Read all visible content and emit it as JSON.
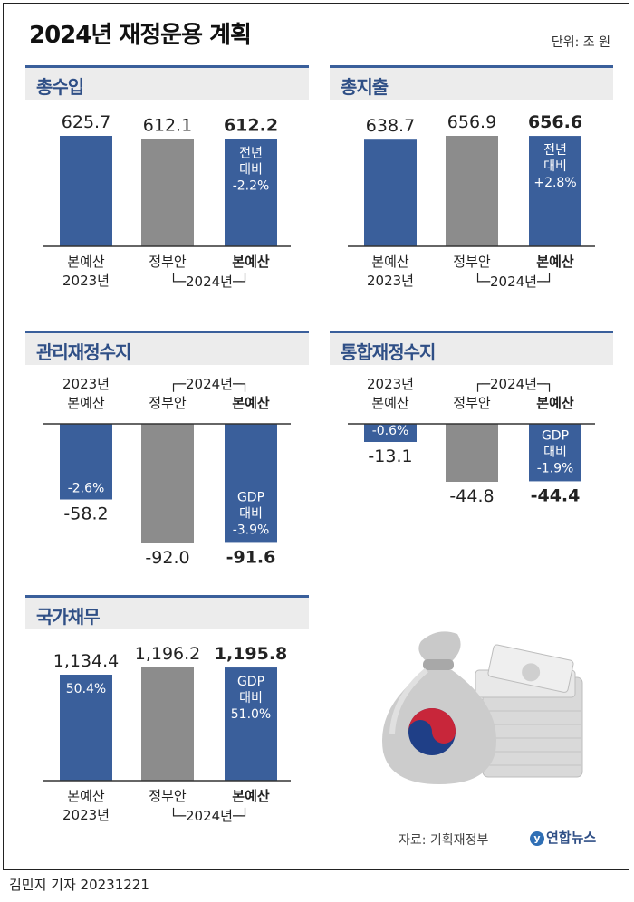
{
  "header": {
    "title": "2024년 재정운용 계획",
    "unit": "단위: 조 원"
  },
  "footer": {
    "credit": "김민지 기자  20231221",
    "source": "자료: 기획재정부",
    "logo": "연합뉴스"
  },
  "colors": {
    "blue": "#3a5f9b",
    "gray": "#8c8c8c",
    "panel_bg": "#ececec",
    "title_blue": "#2f4f86"
  },
  "icons": {
    "illustration": "money-bag-and-cash-icon"
  },
  "chart_data": [
    {
      "type": "bar",
      "title": "총수입",
      "categories": [
        "본예산 2023년",
        "정부안",
        "본예산"
      ],
      "values": [
        625.7,
        612.1,
        612.2
      ],
      "value_labels": [
        "625.7",
        "612.1",
        "612.2"
      ],
      "bar_colors": [
        "blue",
        "gray",
        "blue"
      ],
      "annotations": [
        "",
        "",
        "전년\n대비\n-2.2%"
      ],
      "axis_labels": [
        "본예산\n2023년",
        "정부안",
        "본예산"
      ],
      "group_label": "└─2024년─┘"
    },
    {
      "type": "bar",
      "title": "총지출",
      "categories": [
        "본예산 2023년",
        "정부안",
        "본예산"
      ],
      "values": [
        638.7,
        656.9,
        656.6
      ],
      "value_labels": [
        "638.7",
        "656.9",
        "656.6"
      ],
      "bar_colors": [
        "blue",
        "gray",
        "blue"
      ],
      "annotations": [
        "",
        "",
        "전년\n대비\n+2.8%"
      ],
      "axis_labels": [
        "본예산\n2023년",
        "정부안",
        "본예산"
      ],
      "group_label": "└─2024년─┘"
    },
    {
      "type": "bar",
      "title": "관리재정수지",
      "categories": [
        "2023년 본예산",
        "정부안",
        "본예산"
      ],
      "values": [
        -58.2,
        -92.0,
        -91.6
      ],
      "value_labels": [
        "-58.2",
        "-92.0",
        "-91.6"
      ],
      "bar_colors": [
        "blue",
        "gray",
        "blue"
      ],
      "annotations": [
        "-2.6%",
        "",
        "GDP\n대비\n-3.9%"
      ],
      "axis_labels": [
        "2023년\n본예산",
        "정부안",
        "본예산"
      ],
      "group_label": "┌─2024년─┐"
    },
    {
      "type": "bar",
      "title": "통합재정수지",
      "categories": [
        "2023년 본예산",
        "정부안",
        "본예산"
      ],
      "values": [
        -13.1,
        -44.8,
        -44.4
      ],
      "value_labels": [
        "-13.1",
        "-44.8",
        "-44.4"
      ],
      "bar_colors": [
        "blue",
        "gray",
        "blue"
      ],
      "annotations": [
        "-0.6%",
        "",
        "GDP\n대비\n-1.9%"
      ],
      "axis_labels": [
        "2023년\n본예산",
        "정부안",
        "본예산"
      ],
      "group_label": "┌─2024년─┐"
    },
    {
      "type": "bar",
      "title": "국가채무",
      "categories": [
        "본예산 2023년",
        "정부안",
        "본예산"
      ],
      "values": [
        1134.4,
        1196.2,
        1195.8
      ],
      "value_labels": [
        "1,134.4",
        "1,196.2",
        "1,195.8"
      ],
      "bar_colors": [
        "blue",
        "gray",
        "blue"
      ],
      "annotations": [
        "50.4%",
        "",
        "GDP\n대비\n51.0%"
      ],
      "axis_labels": [
        "본예산\n2023년",
        "정부안",
        "본예산"
      ],
      "group_label": "└─2024년─┘"
    }
  ]
}
